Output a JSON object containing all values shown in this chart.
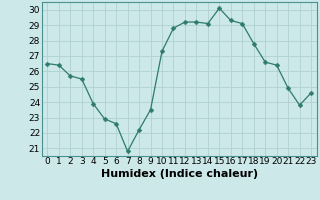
{
  "x": [
    0,
    1,
    2,
    3,
    4,
    5,
    6,
    7,
    8,
    9,
    10,
    11,
    12,
    13,
    14,
    15,
    16,
    17,
    18,
    19,
    20,
    21,
    22,
    23
  ],
  "y": [
    26.5,
    26.4,
    25.7,
    25.5,
    23.9,
    22.9,
    22.6,
    20.8,
    22.2,
    23.5,
    27.3,
    28.8,
    29.2,
    29.2,
    29.1,
    30.1,
    29.3,
    29.1,
    27.8,
    26.6,
    26.4,
    24.9,
    23.8,
    24.6
  ],
  "title": "",
  "xlabel": "Humidex (Indice chaleur)",
  "ylabel": "",
  "ylim": [
    20.5,
    30.5
  ],
  "xlim": [
    -0.5,
    23.5
  ],
  "yticks": [
    21,
    22,
    23,
    24,
    25,
    26,
    27,
    28,
    29,
    30
  ],
  "xticks": [
    0,
    1,
    2,
    3,
    4,
    5,
    6,
    7,
    8,
    9,
    10,
    11,
    12,
    13,
    14,
    15,
    16,
    17,
    18,
    19,
    20,
    21,
    22,
    23
  ],
  "xtick_labels": [
    "0",
    "1",
    "2",
    "3",
    "4",
    "5",
    "6",
    "7",
    "8",
    "9",
    "10",
    "11",
    "12",
    "13",
    "14",
    "15",
    "16",
    "17",
    "18",
    "19",
    "20",
    "21",
    "22",
    "23"
  ],
  "line_color": "#2e7b6e",
  "marker": "D",
  "marker_size": 2.5,
  "bg_color": "#cce8e8",
  "grid_color": "#b0d0d0",
  "xlabel_fontsize": 8,
  "tick_fontsize": 6.5
}
